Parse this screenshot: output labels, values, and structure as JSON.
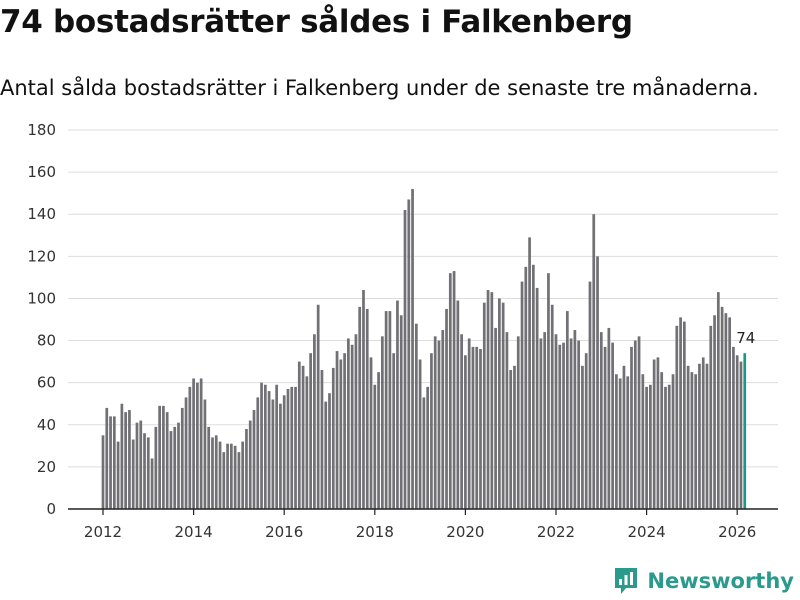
{
  "page": {
    "title": "74 bostadsrätter såldes i Falkenberg",
    "subtitle": "Antal sålda bostadsrätter i Falkenberg under de senaste tre månaderna.",
    "brand": "Newsworthy"
  },
  "colors": {
    "bar": "#717075",
    "highlight": "#19988b",
    "brand": "#2a9a8c"
  },
  "chart_data": {
    "type": "bar",
    "title": "74 bostadsrätter såldes i Falkenberg",
    "subtitle": "Antal sålda bostadsrätter i Falkenberg under de senaste tre månaderna.",
    "xlabel": "",
    "ylabel": "",
    "ylim": [
      0,
      180
    ],
    "yticks": [
      0,
      20,
      40,
      60,
      80,
      100,
      120,
      140,
      160,
      180
    ],
    "xticks": [
      "2012",
      "2014",
      "2016",
      "2018",
      "2020",
      "2022",
      "2024",
      "2026"
    ],
    "grid": true,
    "start": "2012-01",
    "interval": "month",
    "value_label": "74",
    "values": [
      35,
      48,
      44,
      44,
      32,
      50,
      46,
      47,
      33,
      41,
      42,
      36,
      34,
      24,
      39,
      49,
      49,
      46,
      37,
      39,
      41,
      48,
      53,
      58,
      62,
      60,
      62,
      52,
      39,
      34,
      35,
      32,
      27,
      31,
      31,
      30,
      27,
      32,
      38,
      42,
      47,
      53,
      60,
      59,
      56,
      52,
      59,
      50,
      54,
      57,
      58,
      58,
      70,
      68,
      63,
      74,
      83,
      97,
      66,
      51,
      55,
      67,
      75,
      71,
      74,
      81,
      78,
      83,
      96,
      104,
      95,
      72,
      59,
      65,
      82,
      94,
      94,
      74,
      99,
      92,
      142,
      147,
      152,
      88,
      71,
      53,
      58,
      74,
      82,
      80,
      85,
      95,
      112,
      113,
      99,
      83,
      73,
      81,
      77,
      77,
      76,
      98,
      104,
      103,
      86,
      100,
      98,
      84,
      66,
      68,
      82,
      108,
      115,
      129,
      116,
      105,
      81,
      84,
      112,
      97,
      83,
      78,
      79,
      94,
      81,
      85,
      80,
      68,
      74,
      108,
      140,
      120,
      84,
      77,
      86,
      79,
      64,
      62,
      68,
      63,
      77,
      80,
      82,
      64,
      58,
      59,
      71,
      72,
      65,
      58,
      59,
      64,
      87,
      91,
      89,
      68,
      65,
      64,
      69,
      72,
      69,
      87,
      92,
      103,
      96,
      93,
      91,
      77,
      73,
      70,
      74
    ]
  }
}
